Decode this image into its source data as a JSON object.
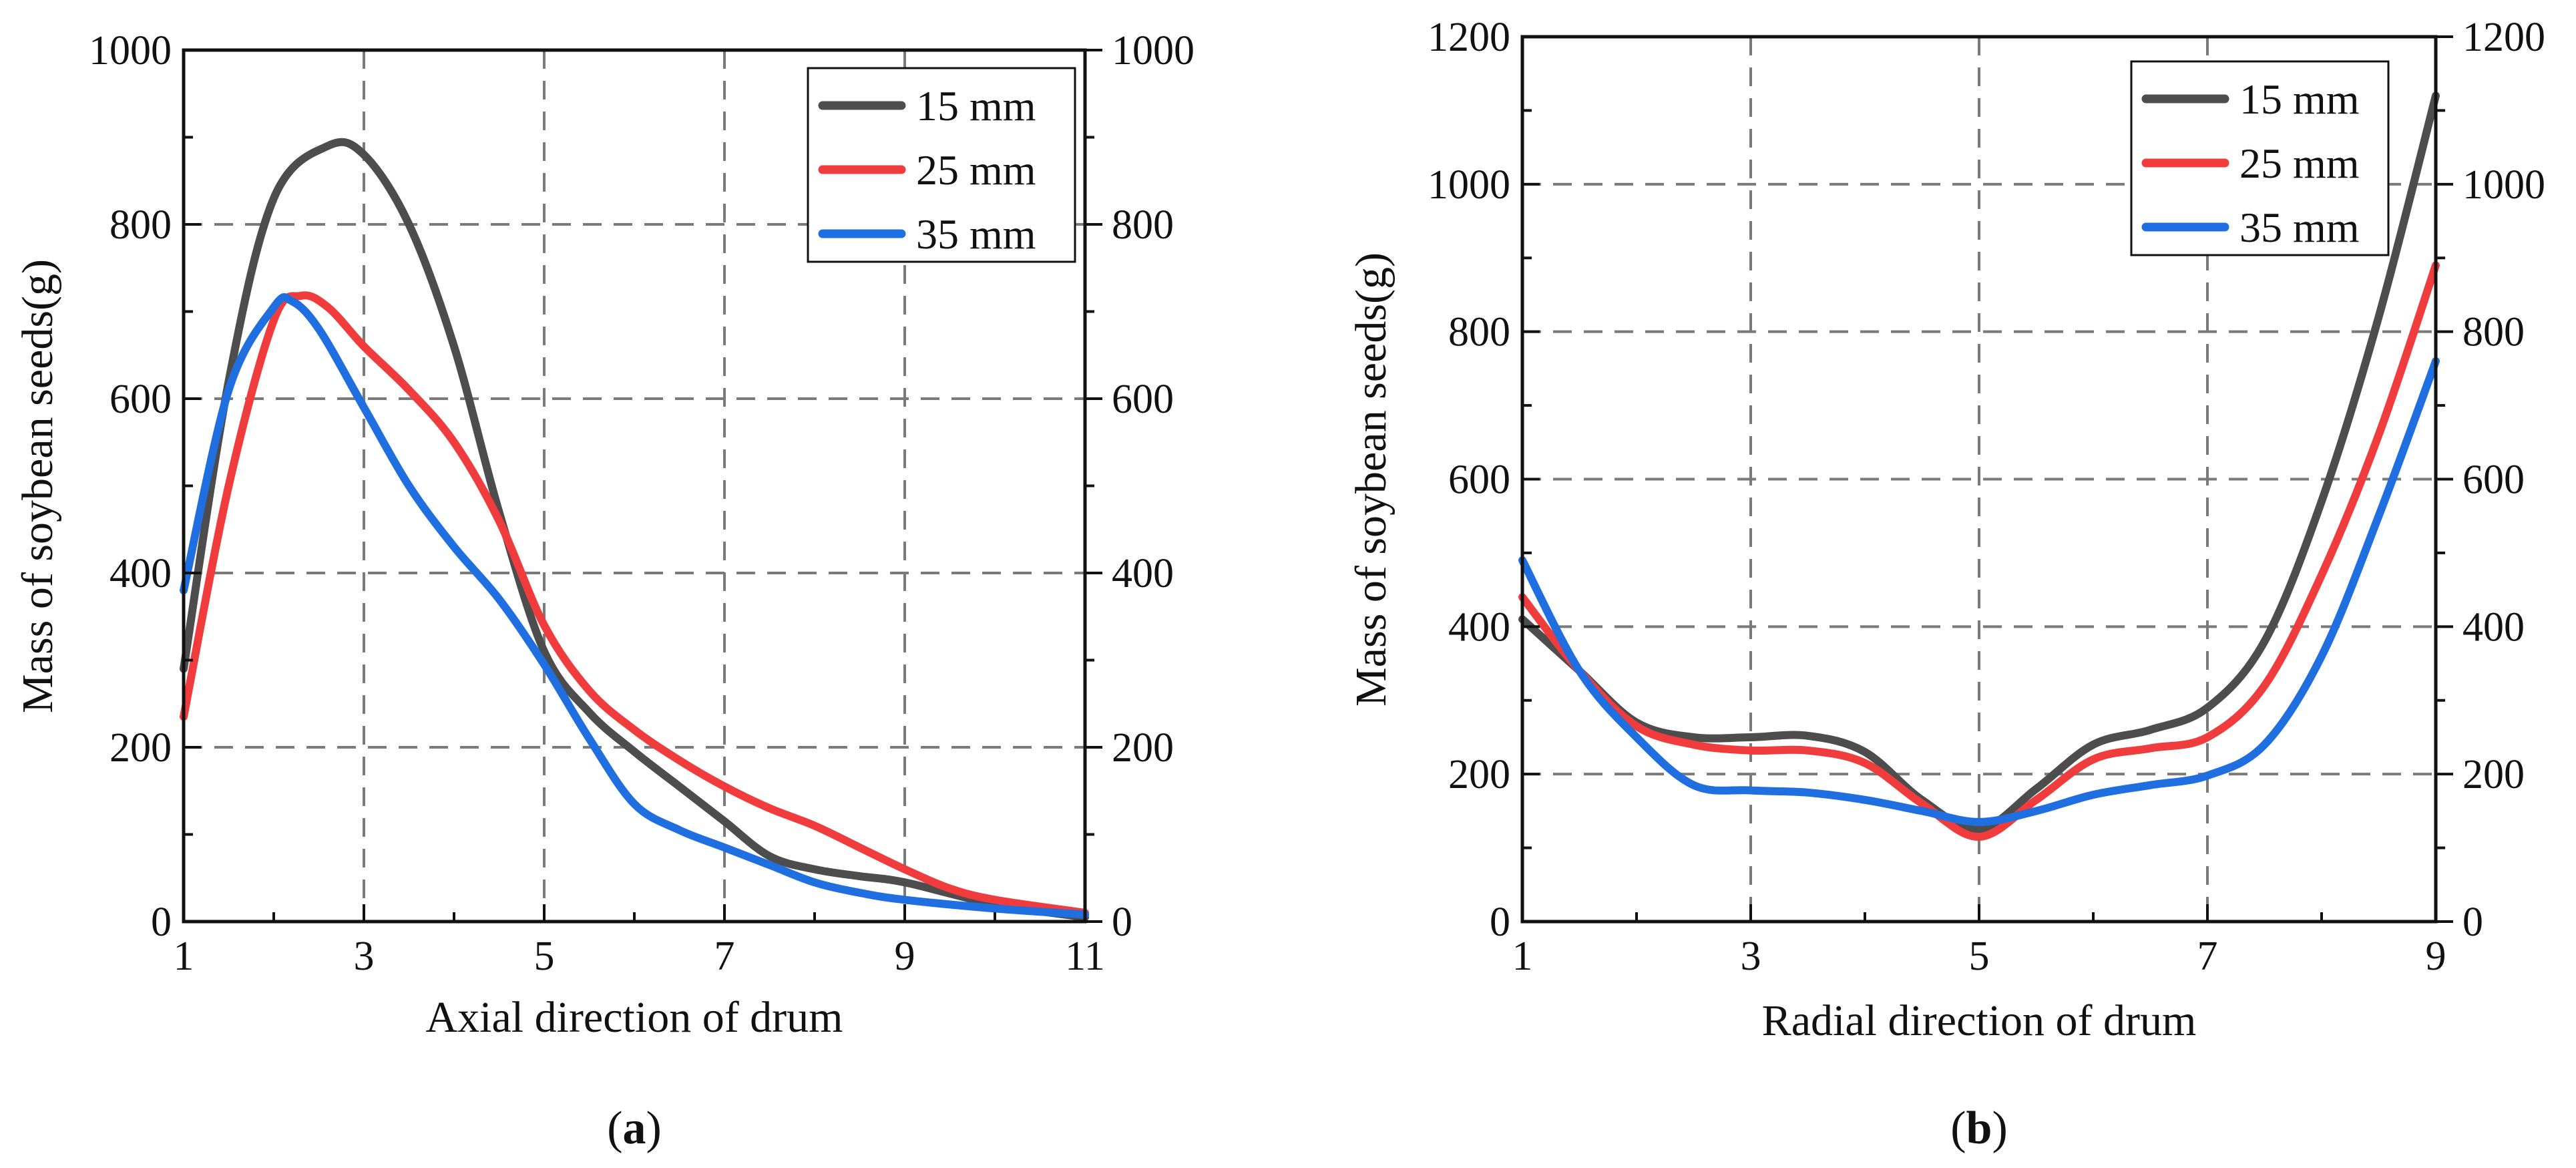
{
  "chart_data": [
    {
      "type": "line",
      "panel_label": "a",
      "xlabel": "Axial direction of drum",
      "ylabel": "Mass of soybean seeds(g)",
      "xlim": [
        1,
        11
      ],
      "ylim": [
        0,
        1000
      ],
      "xticks": [
        1,
        3,
        5,
        7,
        9,
        11
      ],
      "yticks": [
        0,
        200,
        400,
        600,
        800,
        1000
      ],
      "grid": true,
      "legend_position": "top-right",
      "series": [
        {
          "name": "15 mm",
          "color": "#4d4d4d",
          "points": [
            [
              1,
              290
            ],
            [
              1.5,
              620
            ],
            [
              2,
              830
            ],
            [
              2.6,
              890
            ],
            [
              3,
              880
            ],
            [
              3.5,
              800
            ],
            [
              4,
              660
            ],
            [
              4.5,
              470
            ],
            [
              5,
              310
            ],
            [
              5.5,
              240
            ],
            [
              6,
              195
            ],
            [
              6.5,
              155
            ],
            [
              7,
              115
            ],
            [
              7.5,
              75
            ],
            [
              8,
              60
            ],
            [
              8.5,
              52
            ],
            [
              9,
              45
            ],
            [
              10,
              20
            ],
            [
              11,
              5
            ]
          ]
        },
        {
          "name": "25 mm",
          "color": "#f03c3c",
          "points": [
            [
              1,
              235
            ],
            [
              1.5,
              500
            ],
            [
              2,
              690
            ],
            [
              2.3,
              718
            ],
            [
              2.6,
              705
            ],
            [
              3,
              660
            ],
            [
              3.5,
              610
            ],
            [
              4,
              550
            ],
            [
              4.5,
              460
            ],
            [
              5,
              340
            ],
            [
              5.5,
              265
            ],
            [
              6,
              220
            ],
            [
              6.5,
              185
            ],
            [
              7,
              155
            ],
            [
              7.5,
              130
            ],
            [
              8,
              110
            ],
            [
              8.5,
              85
            ],
            [
              9,
              60
            ],
            [
              9.5,
              38
            ],
            [
              10,
              25
            ],
            [
              11,
              10
            ]
          ]
        },
        {
          "name": "35 mm",
          "color": "#1f6fe0",
          "points": [
            [
              1,
              380
            ],
            [
              1.5,
              610
            ],
            [
              2,
              705
            ],
            [
              2.2,
              712
            ],
            [
              2.5,
              680
            ],
            [
              3,
              590
            ],
            [
              3.5,
              500
            ],
            [
              4,
              430
            ],
            [
              4.5,
              370
            ],
            [
              5,
              295
            ],
            [
              5.5,
              210
            ],
            [
              6,
              135
            ],
            [
              6.5,
              105
            ],
            [
              7,
              85
            ],
            [
              7.5,
              65
            ],
            [
              8,
              45
            ],
            [
              8.5,
              33
            ],
            [
              9,
              25
            ],
            [
              10,
              15
            ],
            [
              11,
              8
            ]
          ]
        }
      ]
    },
    {
      "type": "line",
      "panel_label": "b",
      "xlabel": "Radial direction of drum",
      "ylabel": "Mass of soybean seeds(g)",
      "xlim": [
        1,
        9
      ],
      "ylim": [
        0,
        1200
      ],
      "xticks": [
        1,
        3,
        5,
        7,
        9
      ],
      "yticks": [
        0,
        200,
        400,
        600,
        800,
        1000,
        1200
      ],
      "grid": true,
      "legend_position": "top-right",
      "series": [
        {
          "name": "15 mm",
          "color": "#4d4d4d",
          "points": [
            [
              1,
              410
            ],
            [
              1.5,
              340
            ],
            [
              2,
              270
            ],
            [
              2.5,
              250
            ],
            [
              3,
              250
            ],
            [
              3.5,
              252
            ],
            [
              4,
              230
            ],
            [
              4.5,
              165
            ],
            [
              5,
              125
            ],
            [
              5.5,
              180
            ],
            [
              6,
              240
            ],
            [
              6.5,
              260
            ],
            [
              7,
              290
            ],
            [
              7.5,
              380
            ],
            [
              8,
              570
            ],
            [
              8.5,
              820
            ],
            [
              9,
              1120
            ]
          ]
        },
        {
          "name": "25 mm",
          "color": "#f03c3c",
          "points": [
            [
              1,
              440
            ],
            [
              1.5,
              340
            ],
            [
              2,
              265
            ],
            [
              2.5,
              240
            ],
            [
              3,
              232
            ],
            [
              3.5,
              232
            ],
            [
              4,
              215
            ],
            [
              4.5,
              160
            ],
            [
              5,
              115
            ],
            [
              5.5,
              165
            ],
            [
              6,
              220
            ],
            [
              6.5,
              235
            ],
            [
              7,
              250
            ],
            [
              7.5,
              320
            ],
            [
              8,
              470
            ],
            [
              8.5,
              660
            ],
            [
              9,
              890
            ]
          ]
        },
        {
          "name": "35 mm",
          "color": "#1f6fe0",
          "points": [
            [
              1,
              490
            ],
            [
              1.5,
              340
            ],
            [
              2,
              250
            ],
            [
              2.5,
              185
            ],
            [
              3,
              178
            ],
            [
              3.5,
              175
            ],
            [
              4,
              165
            ],
            [
              4.5,
              150
            ],
            [
              5,
              135
            ],
            [
              5.5,
              150
            ],
            [
              6,
              172
            ],
            [
              6.5,
              185
            ],
            [
              7,
              198
            ],
            [
              7.5,
              240
            ],
            [
              8,
              360
            ],
            [
              8.5,
              550
            ],
            [
              9,
              760
            ]
          ]
        }
      ]
    }
  ]
}
